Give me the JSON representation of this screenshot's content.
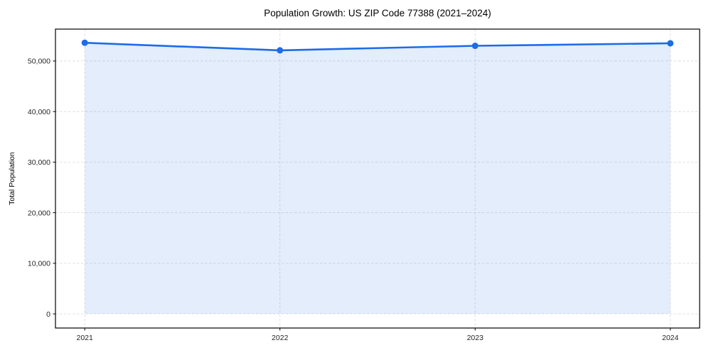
{
  "chart_data": {
    "type": "area",
    "title": "Population Growth: US ZIP Code 77388 (2021–2024)",
    "xlabel": "",
    "ylabel": "Total Population",
    "categories": [
      2021,
      2022,
      2023,
      2024
    ],
    "series": [
      {
        "name": "Total Population",
        "values": [
          53600,
          52100,
          53000,
          53500
        ]
      }
    ],
    "x_tick_labels": [
      "2021",
      "2022",
      "2023",
      "2024"
    ],
    "y_ticks": [
      0,
      10000,
      20000,
      30000,
      40000,
      50000
    ],
    "y_tick_labels": [
      "0",
      "10,000",
      "20,000",
      "30,000",
      "40,000",
      "50,000"
    ],
    "xlim": [
      2020.85,
      2024.15
    ],
    "ylim": [
      -2800,
      56300
    ],
    "grid": true,
    "grid_style": "dashed",
    "legend": false,
    "fill_to_zero": true,
    "marker": "circle",
    "colors": {
      "line": "#1c6ce8",
      "marker": "#1c6ce8",
      "fill": "#1c6ce8",
      "fill_opacity": 0.12,
      "grid": "#d9d9d9",
      "spine": "#000000",
      "tick": "#000000",
      "text": "#000000",
      "background": "#ffffff"
    }
  }
}
